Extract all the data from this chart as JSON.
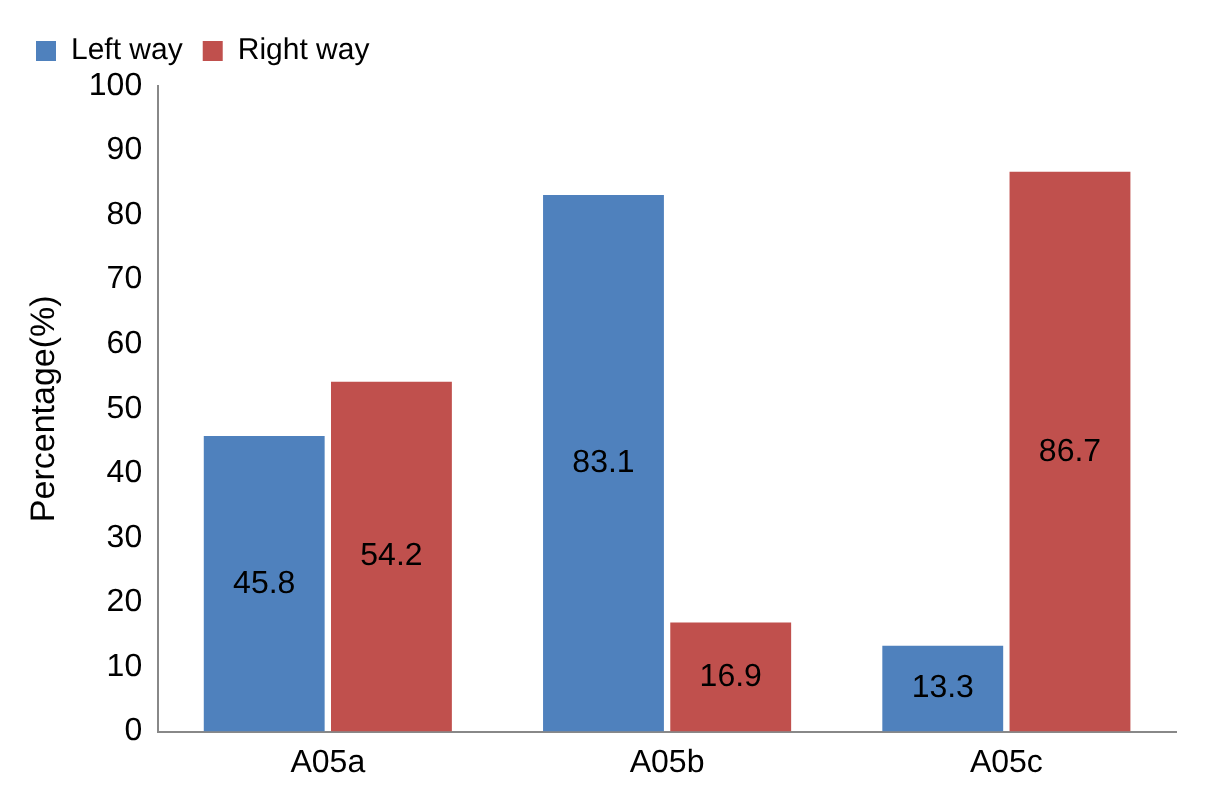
{
  "chart_data": {
    "type": "bar",
    "ylabel": "Percentage(%)",
    "categories": [
      "A05a",
      "A05b",
      "A05c"
    ],
    "series": [
      {
        "name": "Left way",
        "color": "#4f81bd",
        "values": [
          45.8,
          83.1,
          13.3
        ]
      },
      {
        "name": "Right way",
        "color": "#c0504d",
        "values": [
          54.2,
          16.9,
          86.7
        ]
      }
    ],
    "ylim": [
      0,
      100
    ],
    "yticks": [
      0,
      10,
      20,
      30,
      40,
      50,
      60,
      70,
      80,
      90,
      100
    ],
    "grid": false,
    "legend": "top left",
    "data_labels": true
  }
}
